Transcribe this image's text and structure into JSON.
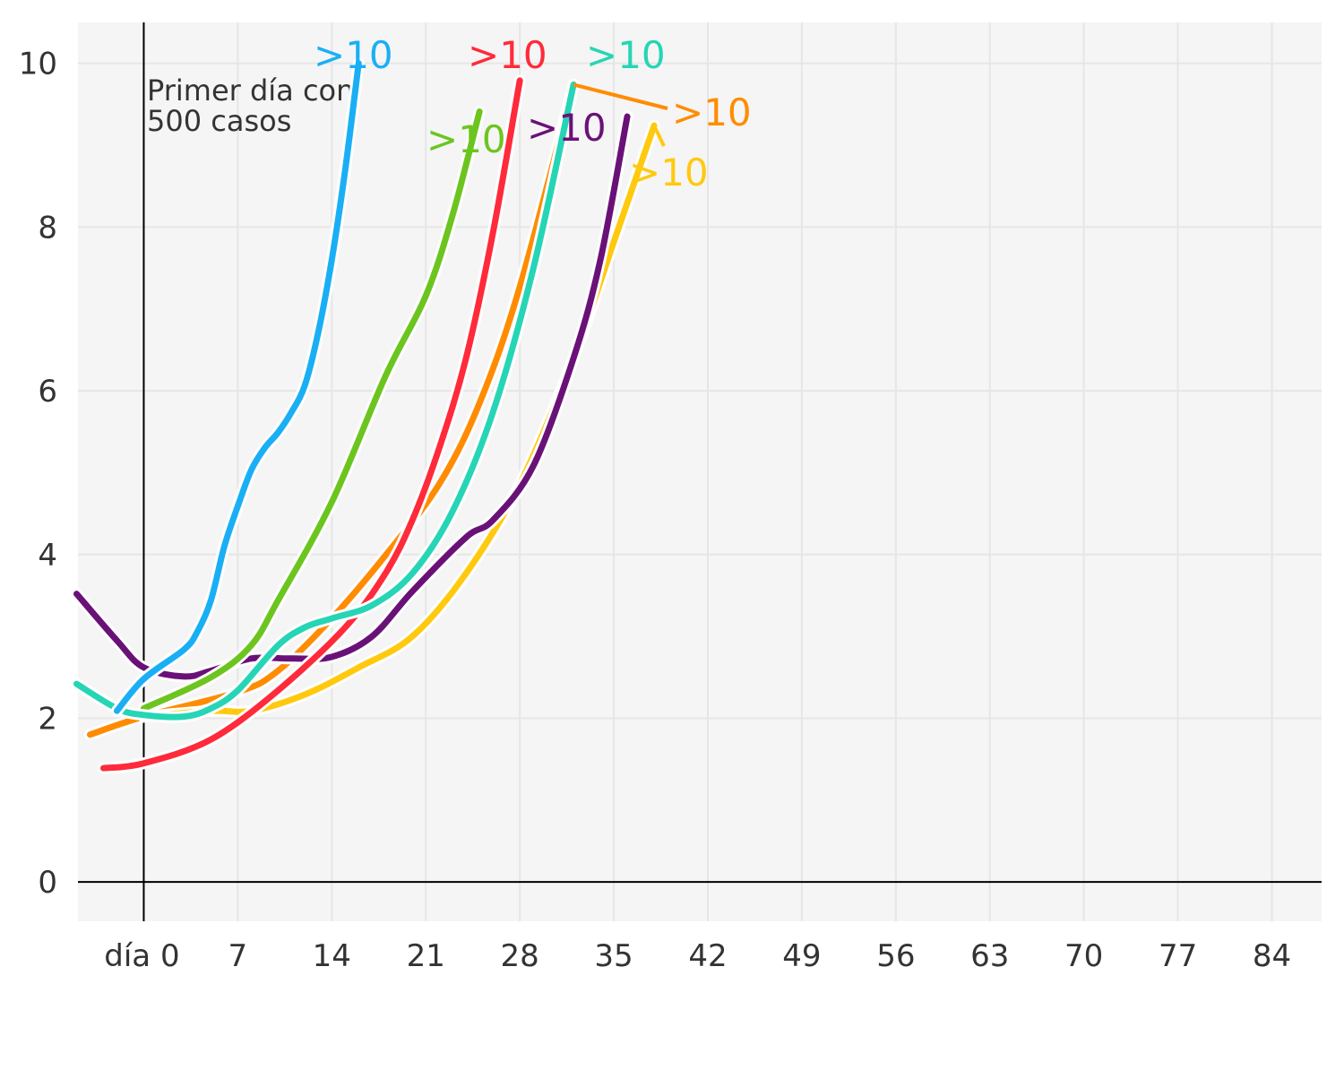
{
  "chart_data": {
    "type": "line",
    "title": "",
    "xlabel": "",
    "ylabel": "",
    "xlim": [
      -4.9,
      87.7
    ],
    "ylim": [
      -0.48,
      10.5
    ],
    "grid": true,
    "x_ticks": [
      0,
      7,
      14,
      21,
      28,
      35,
      42,
      49,
      56,
      63,
      70,
      77,
      84
    ],
    "x_tick_labels": [
      "día 0",
      "7",
      "14",
      "21",
      "28",
      "35",
      "42",
      "49",
      "56",
      "63",
      "70",
      "77",
      "84"
    ],
    "y_ticks": [
      0,
      2,
      4,
      6,
      8,
      10
    ],
    "y_tick_labels": [
      "0",
      "2",
      "4",
      "6",
      "8",
      "10"
    ],
    "annotation": {
      "line1": "Primer día con",
      "line2": "500 casos",
      "x": 0
    },
    "series": [
      {
        "name": "orange",
        "color": "#ff8c00",
        "end_label": ">10",
        "x": [
          -4,
          0,
          7,
          10,
          14,
          18,
          22,
          25,
          28,
          32
        ],
        "y": [
          1.8,
          2.02,
          2.32,
          2.58,
          3.22,
          3.99,
          4.86,
          5.85,
          7.27,
          9.74
        ]
      },
      {
        "name": "yellow",
        "color": "#ffc90e",
        "end_label": ">10",
        "x": [
          0,
          5,
          8,
          12,
          16,
          20,
          24,
          28,
          32,
          35,
          38
        ],
        "y": [
          2.02,
          2.09,
          2.09,
          2.29,
          2.62,
          3.0,
          3.77,
          4.86,
          6.4,
          7.82,
          9.24
        ]
      },
      {
        "name": "purple",
        "color": "#6a1178",
        "end_label": ">10",
        "x": [
          -5,
          -2,
          0,
          3,
          5,
          8,
          11,
          14,
          17,
          20,
          24,
          26,
          29,
          32,
          34,
          36
        ],
        "y": [
          3.52,
          2.95,
          2.62,
          2.51,
          2.58,
          2.73,
          2.73,
          2.75,
          3.0,
          3.55,
          4.21,
          4.42,
          5.08,
          6.4,
          7.6,
          9.35
        ]
      },
      {
        "name": "red",
        "color": "#ff2a3a",
        "end_label": ">10",
        "x": [
          -3,
          0,
          5,
          10,
          15,
          18,
          20,
          22,
          24,
          26,
          28
        ],
        "y": [
          1.39,
          1.45,
          1.74,
          2.34,
          3.11,
          3.77,
          4.42,
          5.3,
          6.4,
          7.93,
          9.79
        ]
      },
      {
        "name": "green",
        "color": "#6cc51f",
        "end_label": ">10",
        "x": [
          0,
          5,
          8,
          10,
          14,
          18,
          21,
          23,
          25
        ],
        "y": [
          2.12,
          2.5,
          2.89,
          3.44,
          4.64,
          6.18,
          7.16,
          8.15,
          9.41
        ]
      },
      {
        "name": "teal",
        "color": "#26d5b5",
        "end_label": ">10",
        "x": [
          -5,
          -2,
          0,
          3,
          5,
          7,
          10,
          12,
          14,
          17,
          20,
          23,
          26,
          29,
          32
        ],
        "y": [
          2.42,
          2.12,
          2.04,
          2.02,
          2.12,
          2.34,
          2.89,
          3.11,
          3.22,
          3.38,
          3.77,
          4.53,
          5.74,
          7.49,
          9.74
        ]
      },
      {
        "name": "blue",
        "color": "#1aaff5",
        "end_label": ">10",
        "x": [
          -2,
          0,
          3,
          4,
          5,
          6,
          7,
          8,
          9,
          10,
          11,
          12,
          13,
          14,
          15,
          16
        ],
        "y": [
          2.09,
          2.48,
          2.84,
          3.06,
          3.44,
          4.1,
          4.59,
          5.03,
          5.3,
          5.49,
          5.74,
          6.07,
          6.72,
          7.6,
          8.7,
          10.0
        ]
      }
    ]
  }
}
